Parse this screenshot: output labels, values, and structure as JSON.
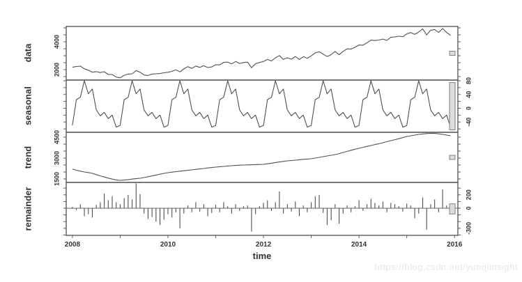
{
  "figure": {
    "background": "#ffffff",
    "line_color": "#4f4f4f",
    "border_color": "#5a5a5a",
    "text_color": "#333333",
    "scale_bar_fill": "#dcdcdc",
    "scale_bar_stroke": "#808080",
    "watermark": {
      "text": "https://blog.csdn.net/yunqiinsight",
      "color": "#e7e7e7"
    }
  },
  "chart_data": {
    "type": "line",
    "description": "STL seasonal-trend decomposition, 4 stacked panels sharing one time axis",
    "xlabel": "time",
    "grid": false,
    "legend": "none",
    "x": {
      "start": 2008,
      "points_per_year": 12,
      "n": 96
    },
    "xlim": [
      2007.87,
      2016.07
    ],
    "xticks": {
      "values": [
        2008,
        2009,
        2010,
        2011,
        2012,
        2013,
        2014,
        2015,
        2016
      ],
      "labeled": [
        2008,
        2010,
        2012,
        2014,
        2016
      ]
    },
    "panels": [
      {
        "id": "data",
        "label": "data",
        "style": "line",
        "axis_side": "left",
        "ylim": [
          1250,
          5100
        ],
        "ticks": [
          1500,
          2000,
          2500,
          3000,
          3500,
          4000,
          4500,
          5000
        ],
        "tick_labels": [
          2000,
          4000
        ],
        "values": [
          2170,
          2225,
          2252,
          2060,
          1962,
          1816,
          1855,
          1788,
          1848,
          1650,
          1650,
          1465,
          1410,
          1595,
          1682,
          1700,
          1932,
          1816,
          1615,
          1578,
          1678,
          1700,
          1720,
          1775,
          1810,
          1875,
          1992,
          1840,
          2052,
          2216,
          2085,
          2258,
          2158,
          2280,
          2150,
          2195,
          2350,
          2345,
          2522,
          2540,
          2412,
          2586,
          2445,
          2508,
          2538,
          2140,
          2420,
          2515,
          2580,
          2735,
          2622,
          2850,
          3012,
          2736,
          2855,
          2748,
          2938,
          2730,
          2930,
          2815,
          2990,
          3205,
          3282,
          3110,
          2942,
          3076,
          3305,
          3068,
          3308,
          3490,
          3480,
          3605,
          3770,
          3755,
          3932,
          4120,
          4092,
          4126,
          4195,
          4098,
          4318,
          4350,
          4400,
          4365,
          4570,
          4665,
          4532,
          4700,
          4932,
          4496,
          4830,
          4878,
          4668,
          4950,
          4670,
          4455
        ]
      },
      {
        "id": "seasonal",
        "label": "seasonal",
        "style": "line",
        "axis_side": "right",
        "ylim": [
          -70,
          82
        ],
        "ticks": [
          -60,
          -40,
          -20,
          0,
          20,
          40,
          60,
          80
        ],
        "tick_labels": [
          -40,
          0,
          40,
          80
        ],
        "pattern": [
          -50,
          25,
          32,
          80,
          42,
          56,
          -5,
          -22,
          -12,
          -30,
          -20,
          -55
        ],
        "repeat": 8
      },
      {
        "id": "trend",
        "label": "trend",
        "style": "line",
        "axis_side": "left",
        "ylim": [
          1250,
          4850
        ],
        "ticks": [
          1500,
          2000,
          2500,
          3000,
          3500,
          4000,
          4500
        ],
        "tick_labels": [
          1500,
          3000,
          4500
        ],
        "values": [
          2200,
          2130,
          2060,
          2000,
          1960,
          1900,
          1810,
          1720,
          1640,
          1560,
          1490,
          1430,
          1400,
          1420,
          1450,
          1490,
          1520,
          1550,
          1600,
          1660,
          1720,
          1780,
          1840,
          1900,
          1950,
          1990,
          2020,
          2060,
          2090,
          2120,
          2150,
          2190,
          2220,
          2250,
          2290,
          2320,
          2350,
          2380,
          2400,
          2430,
          2450,
          2470,
          2490,
          2500,
          2510,
          2520,
          2530,
          2540,
          2550,
          2590,
          2630,
          2680,
          2720,
          2760,
          2800,
          2820,
          2850,
          2880,
          2910,
          2930,
          2950,
          3000,
          3050,
          3100,
          3150,
          3200,
          3250,
          3320,
          3400,
          3480,
          3560,
          3630,
          3700,
          3770,
          3840,
          3900,
          3970,
          4030,
          4100,
          4180,
          4250,
          4320,
          4390,
          4470,
          4550,
          4600,
          4650,
          4700,
          4730,
          4760,
          4775,
          4770,
          4740,
          4700,
          4650,
          4600
        ]
      },
      {
        "id": "remainder",
        "label": "remainder",
        "style": "hbar",
        "axis_side": "right",
        "baseline": 0,
        "ylim": [
          -405,
          385
        ],
        "ticks": [
          -400,
          -300,
          -200,
          -100,
          0,
          100,
          200,
          300
        ],
        "tick_labels": [
          -300,
          0,
          200
        ],
        "values": [
          20,
          -30,
          60,
          -120,
          -90,
          -140,
          50,
          90,
          220,
          120,
          180,
          90,
          60,
          150,
          200,
          130,
          370,
          210,
          -80,
          -160,
          -130,
          -200,
          -250,
          -170,
          -90,
          -140,
          -60,
          -300,
          -80,
          40,
          -60,
          90,
          -50,
          60,
          -120,
          -70,
          50,
          -60,
          90,
          30,
          -80,
          60,
          -40,
          30,
          40,
          -350,
          -90,
          30,
          80,
          120,
          -40,
          90,
          250,
          -80,
          60,
          -50,
          100,
          -120,
          40,
          -60,
          90,
          180,
          200,
          -70,
          -250,
          -180,
          60,
          -230,
          -80,
          40,
          -60,
          30,
          120,
          -40,
          60,
          140,
          80,
          40,
          100,
          -60,
          80,
          60,
          30,
          -50,
          70,
          40,
          -150,
          -80,
          160,
          -320,
          60,
          130,
          -60,
          280,
          40,
          -90
        ]
      }
    ]
  }
}
